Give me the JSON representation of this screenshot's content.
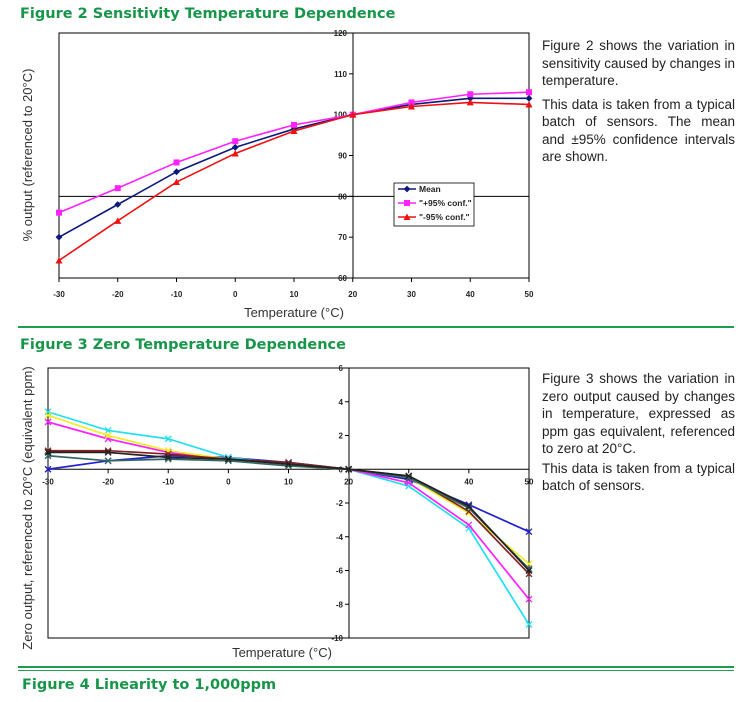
{
  "page": {
    "fig2_title": "Figure 2 Sensitivity Temperature Dependence",
    "fig3_title": "Figure 3 Zero Temperature Dependence",
    "fig4_title": "Figure 4  Linearity to 1,000ppm"
  },
  "fig2_text": {
    "p1": "Figure 2 shows the variation in sensitivity caused by changes in temperature.",
    "p2": "This data is taken from a typical batch of sensors.  The mean and ±95% confidence intervals are shown."
  },
  "fig3_text": {
    "p1": "Figure 3 shows the variation in zero output caused by changes in temperature, expressed as ppm gas equivalent, referenced to zero at 20°C.",
    "p2": "This data is taken from a typical batch of sensors."
  },
  "colors": {
    "accent_green": "#17964a"
  },
  "chart_data": [
    {
      "type": "line",
      "xlabel": "Temperature (°C)",
      "ylabel": "% output (referenced to 20°C)",
      "x": [
        -30,
        -20,
        -10,
        0,
        10,
        20,
        30,
        40,
        50
      ],
      "xlim": [
        -30,
        50
      ],
      "ylim": [
        60,
        120
      ],
      "xticks": [
        "-30",
        "-20",
        "-10",
        "0",
        "10",
        "20",
        "30",
        "40",
        "50"
      ],
      "yticks": [
        "60",
        "70",
        "80",
        "90",
        "100",
        "110",
        "120"
      ],
      "reference_line": 80,
      "legend_position": "center-right",
      "series": [
        {
          "name": "Mean",
          "color": "#0b1a7a",
          "marker": "diamond",
          "values": [
            70,
            78,
            86,
            92,
            96.5,
            100,
            102.5,
            104,
            104
          ]
        },
        {
          "name": "\"+95% conf.\"",
          "color": "#ff22ff",
          "marker": "square",
          "values": [
            76,
            82,
            88.3,
            93.5,
            97.5,
            100,
            103,
            105,
            105.5
          ]
        },
        {
          "name": "\"-95% conf.\"",
          "color": "#ee1111",
          "marker": "triangle",
          "values": [
            64.3,
            74,
            83.5,
            90.5,
            96,
            100,
            102,
            103,
            102.5
          ]
        }
      ]
    },
    {
      "type": "line",
      "xlabel": "Temperature (°C)",
      "ylabel": "Zero output, referenced to 20°C (equivalent ppm)",
      "x": [
        -30,
        -20,
        -10,
        0,
        10,
        20,
        30,
        40,
        50
      ],
      "xlim": [
        -30,
        50
      ],
      "ylim": [
        -10,
        6
      ],
      "xticks": [
        "-30",
        "-20",
        "-10",
        "0",
        "10",
        "20",
        "30",
        "40",
        "50"
      ],
      "yticks": [
        "-10",
        "-8",
        "-6",
        "-4",
        "-2",
        "0",
        "2",
        "4",
        "6"
      ],
      "series": [
        {
          "color": "#2222cc",
          "values": [
            0,
            0.5,
            0.8,
            0.7,
            0.4,
            0,
            -0.6,
            -2.1,
            -3.7
          ]
        },
        {
          "color": "#22e0f0",
          "values": [
            3.4,
            2.3,
            1.8,
            0.7,
            0.3,
            0,
            -1.0,
            -3.5,
            -9.2
          ]
        },
        {
          "color": "#ff22ff",
          "values": [
            2.8,
            1.8,
            1.0,
            0.6,
            0.3,
            0,
            -0.8,
            -3.3,
            -7.7
          ]
        },
        {
          "color": "#eeee22",
          "values": [
            3.2,
            2.0,
            1.1,
            0.6,
            0.2,
            0,
            -0.5,
            -2.6,
            -5.6
          ]
        },
        {
          "color": "#882222",
          "values": [
            1.1,
            1.1,
            0.9,
            0.6,
            0.4,
            0,
            -0.4,
            -2.5,
            -6.2
          ]
        },
        {
          "color": "#336666",
          "values": [
            0.8,
            0.5,
            0.6,
            0.5,
            0.2,
            0,
            -0.5,
            -2.3,
            -5.9
          ]
        },
        {
          "color": "#222222",
          "values": [
            1.0,
            1.0,
            0.7,
            0.6,
            0.3,
            0,
            -0.4,
            -2.2,
            -6.0
          ]
        }
      ]
    }
  ]
}
